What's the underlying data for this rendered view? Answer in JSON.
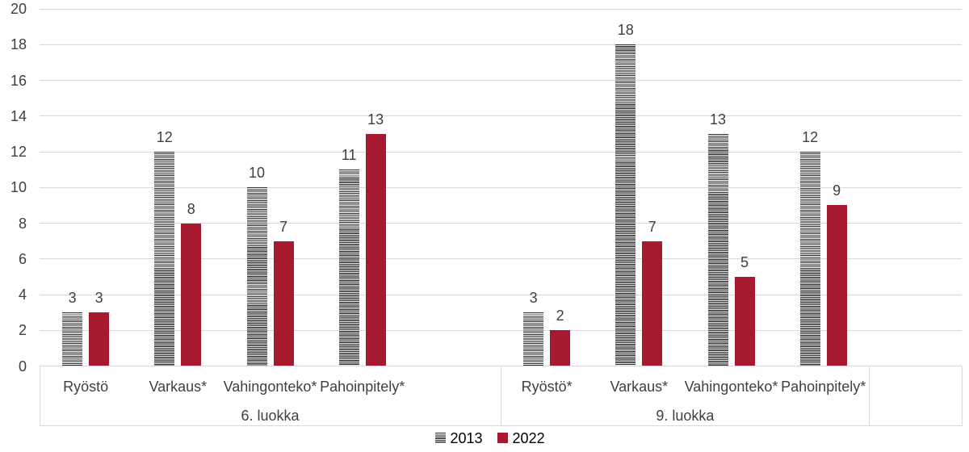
{
  "chart_data": {
    "type": "bar",
    "title": "",
    "xlabel": "",
    "ylabel": "",
    "ylim": [
      0,
      20
    ],
    "ytick_step": 2,
    "yticks": [
      0,
      2,
      4,
      6,
      8,
      10,
      12,
      14,
      16,
      18,
      20
    ],
    "grid": true,
    "legend_position": "bottom-center",
    "groups": [
      {
        "label": "6. luokka",
        "categories": [
          "Ryöstö",
          "Varkaus*",
          "Vahingonteko*",
          "Pahoinpitely*"
        ]
      },
      {
        "label": "9. luokka",
        "categories": [
          "Ryöstö*",
          "Varkaus*",
          "Vahingonteko*",
          "Pahoinpitely*"
        ]
      }
    ],
    "series": [
      {
        "name": "2013",
        "fill": "horizontal-stripe-pattern",
        "stripe_dark": "#333333",
        "stripe_light": "#ececec",
        "values_by_group": [
          [
            3,
            12,
            10,
            11
          ],
          [
            3,
            18,
            13,
            12
          ]
        ]
      },
      {
        "name": "2022",
        "fill": "solid",
        "color": "#a6192e",
        "values_by_group": [
          [
            3,
            8,
            7,
            13
          ],
          [
            2,
            7,
            5,
            9
          ]
        ]
      }
    ]
  },
  "legend": {
    "items": [
      {
        "label": "2013",
        "swatch": "horizontal-stripe-pattern"
      },
      {
        "label": "2022",
        "swatch": "solid-red"
      }
    ]
  },
  "colors": {
    "background": "#ffffff",
    "gridline": "#d9d9d9",
    "axis_line": "#d9d9d9",
    "category_separator": "#d9d9d9",
    "text": "#404040",
    "series_2022": "#a6192e",
    "stripe_dark": "#333333",
    "stripe_light": "#ececec"
  }
}
